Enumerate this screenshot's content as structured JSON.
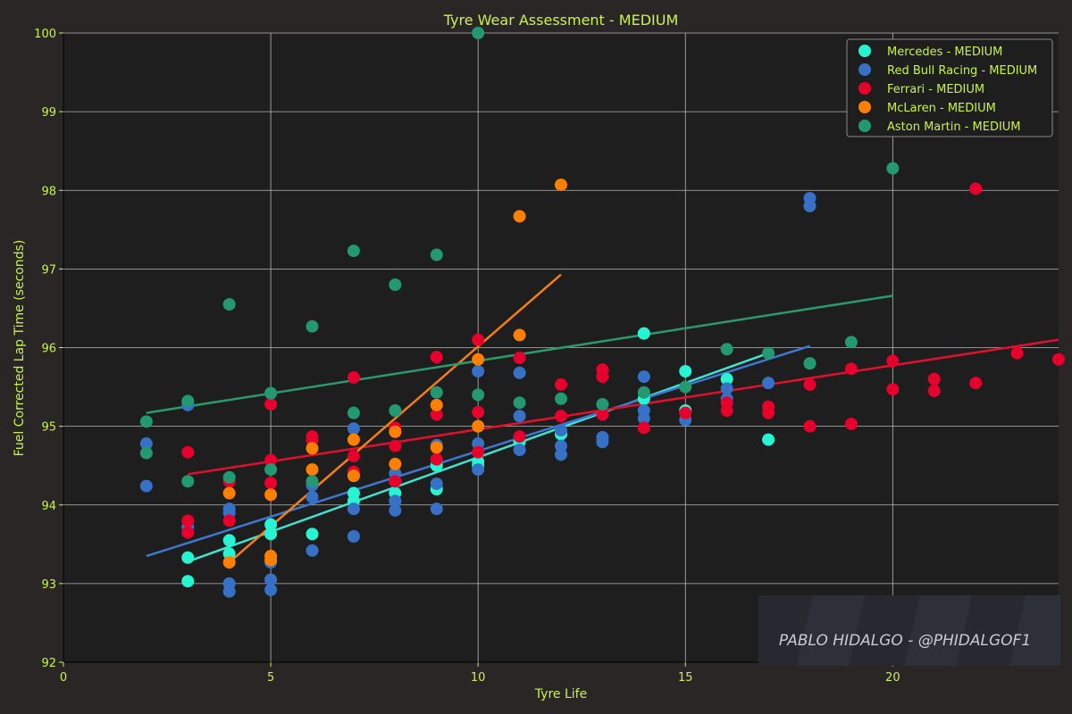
{
  "chart_data": {
    "type": "scatter",
    "title": "Tyre Wear Assessment - MEDIUM",
    "xlabel": "Tyre Life",
    "ylabel": "Fuel Corrected Lap Time (seconds)",
    "xlim": [
      0,
      24
    ],
    "ylim": [
      92,
      100
    ],
    "xticks": [
      0,
      5,
      10,
      15,
      20
    ],
    "yticks": [
      92,
      93,
      94,
      95,
      96,
      97,
      98,
      99,
      100
    ],
    "grid": true,
    "legend_position": "top-right",
    "background": "#1e1e1e",
    "figure_background": "#292625",
    "text_color": "#c8f34b",
    "series": [
      {
        "name": "Mercedes - MEDIUM",
        "color": "#27f4d2",
        "line_color": "#3fe3d0",
        "points": [
          [
            3,
            93.33
          ],
          [
            3,
            93.03
          ],
          [
            4,
            93.55
          ],
          [
            4,
            93.38
          ],
          [
            5,
            93.63
          ],
          [
            5,
            93.75
          ],
          [
            6,
            93.63
          ],
          [
            7,
            94.15
          ],
          [
            7,
            94.05
          ],
          [
            8,
            94.15
          ],
          [
            8,
            94.3
          ],
          [
            9,
            94.2
          ],
          [
            9,
            94.5
          ],
          [
            10,
            94.5
          ],
          [
            10,
            94.55
          ],
          [
            11,
            94.8
          ],
          [
            12,
            94.9
          ],
          [
            14,
            96.18
          ],
          [
            14,
            95.35
          ],
          [
            15,
            95.7
          ],
          [
            15,
            95.2
          ],
          [
            16,
            95.6
          ],
          [
            17,
            94.83
          ]
        ],
        "trend": [
          [
            3,
            93.28
          ],
          [
            17,
            95.93
          ]
        ]
      },
      {
        "name": "Red Bull Racing - MEDIUM",
        "color": "#3671c6",
        "line_color": "#3f77cf",
        "points": [
          [
            2,
            94.78
          ],
          [
            2,
            94.24
          ],
          [
            3,
            95.27
          ],
          [
            3,
            93.72
          ],
          [
            4,
            93.95
          ],
          [
            4,
            93.9
          ],
          [
            4,
            93.0
          ],
          [
            4,
            92.9
          ],
          [
            5,
            93.05
          ],
          [
            5,
            92.92
          ],
          [
            5,
            93.27
          ],
          [
            6,
            94.1
          ],
          [
            6,
            94.25
          ],
          [
            6,
            93.42
          ],
          [
            7,
            94.97
          ],
          [
            7,
            94.38
          ],
          [
            7,
            93.95
          ],
          [
            7,
            93.6
          ],
          [
            8,
            94.4
          ],
          [
            8,
            94.05
          ],
          [
            8,
            93.93
          ],
          [
            9,
            94.76
          ],
          [
            9,
            94.27
          ],
          [
            9,
            93.95
          ],
          [
            10,
            95.7
          ],
          [
            10,
            94.78
          ],
          [
            10,
            94.45
          ],
          [
            11,
            95.68
          ],
          [
            11,
            95.13
          ],
          [
            11,
            94.7
          ],
          [
            12,
            94.95
          ],
          [
            12,
            94.75
          ],
          [
            12,
            94.64
          ],
          [
            13,
            94.86
          ],
          [
            13,
            94.8
          ],
          [
            14,
            95.63
          ],
          [
            14,
            95.2
          ],
          [
            14,
            95.1
          ],
          [
            15,
            95.08
          ],
          [
            16,
            95.48
          ],
          [
            16,
            95.35
          ],
          [
            17,
            95.55
          ],
          [
            18,
            97.9
          ],
          [
            18,
            97.8
          ]
        ],
        "trend": [
          [
            2,
            93.35
          ],
          [
            18,
            96.02
          ]
        ]
      },
      {
        "name": "Ferrari - MEDIUM",
        "color": "#e8002d",
        "line_color": "#e0102e",
        "points": [
          [
            3,
            94.67
          ],
          [
            3,
            93.8
          ],
          [
            3,
            93.65
          ],
          [
            4,
            94.3
          ],
          [
            4,
            93.8
          ],
          [
            5,
            95.28
          ],
          [
            5,
            94.57
          ],
          [
            5,
            94.28
          ],
          [
            6,
            94.87
          ],
          [
            6,
            94.82
          ],
          [
            7,
            95.62
          ],
          [
            7,
            94.62
          ],
          [
            7,
            94.42
          ],
          [
            8,
            94.98
          ],
          [
            8,
            94.75
          ],
          [
            8,
            94.3
          ],
          [
            9,
            95.88
          ],
          [
            9,
            95.15
          ],
          [
            9,
            94.58
          ],
          [
            10,
            96.1
          ],
          [
            10,
            95.18
          ],
          [
            10,
            94.67
          ],
          [
            11,
            95.87
          ],
          [
            11,
            94.87
          ],
          [
            12,
            95.53
          ],
          [
            12,
            95.13
          ],
          [
            13,
            95.72
          ],
          [
            13,
            95.63
          ],
          [
            13,
            95.15
          ],
          [
            14,
            94.98
          ],
          [
            15,
            95.17
          ],
          [
            16,
            95.3
          ],
          [
            16,
            95.2
          ],
          [
            17,
            95.25
          ],
          [
            17,
            95.17
          ],
          [
            18,
            95.53
          ],
          [
            18,
            95.0
          ],
          [
            19,
            95.73
          ],
          [
            19,
            95.03
          ],
          [
            20,
            95.83
          ],
          [
            20,
            95.47
          ],
          [
            21,
            95.6
          ],
          [
            21,
            95.45
          ],
          [
            22,
            98.02
          ],
          [
            22,
            95.55
          ],
          [
            23,
            95.93
          ],
          [
            24,
            95.85
          ]
        ],
        "trend": [
          [
            3,
            94.39
          ],
          [
            24,
            96.1
          ]
        ]
      },
      {
        "name": "McLaren - MEDIUM",
        "color": "#ff8000",
        "line_color": "#f57f10",
        "points": [
          [
            4,
            94.15
          ],
          [
            4,
            93.27
          ],
          [
            5,
            94.13
          ],
          [
            5,
            93.35
          ],
          [
            5,
            93.3
          ],
          [
            6,
            94.72
          ],
          [
            6,
            94.45
          ],
          [
            7,
            94.83
          ],
          [
            7,
            94.37
          ],
          [
            8,
            94.93
          ],
          [
            8,
            94.52
          ],
          [
            9,
            95.27
          ],
          [
            9,
            94.73
          ],
          [
            10,
            95.85
          ],
          [
            10,
            95.0
          ],
          [
            11,
            97.67
          ],
          [
            11,
            96.16
          ],
          [
            12,
            98.07
          ]
        ],
        "trend": [
          [
            4,
            93.27
          ],
          [
            12,
            96.93
          ]
        ]
      },
      {
        "name": "Aston Martin - MEDIUM",
        "color": "#229971",
        "line_color": "#2a9a6e",
        "points": [
          [
            2,
            95.06
          ],
          [
            2,
            94.66
          ],
          [
            3,
            95.32
          ],
          [
            3,
            94.3
          ],
          [
            4,
            96.55
          ],
          [
            4,
            94.35
          ],
          [
            5,
            95.42
          ],
          [
            5,
            94.45
          ],
          [
            6,
            96.27
          ],
          [
            6,
            94.3
          ],
          [
            7,
            97.23
          ],
          [
            7,
            95.17
          ],
          [
            8,
            96.8
          ],
          [
            8,
            95.2
          ],
          [
            9,
            97.18
          ],
          [
            9,
            95.43
          ],
          [
            10,
            100.0
          ],
          [
            10,
            95.4
          ],
          [
            11,
            95.3
          ],
          [
            12,
            95.35
          ],
          [
            13,
            95.28
          ],
          [
            14,
            95.43
          ],
          [
            15,
            95.5
          ],
          [
            16,
            95.98
          ],
          [
            17,
            95.93
          ],
          [
            18,
            95.8
          ],
          [
            19,
            96.07
          ],
          [
            20,
            98.28
          ]
        ],
        "trend": [
          [
            2,
            95.17
          ],
          [
            20,
            96.66
          ]
        ]
      }
    ]
  },
  "watermark": "PABLO HIDALGO - @PHIDALGOF1"
}
